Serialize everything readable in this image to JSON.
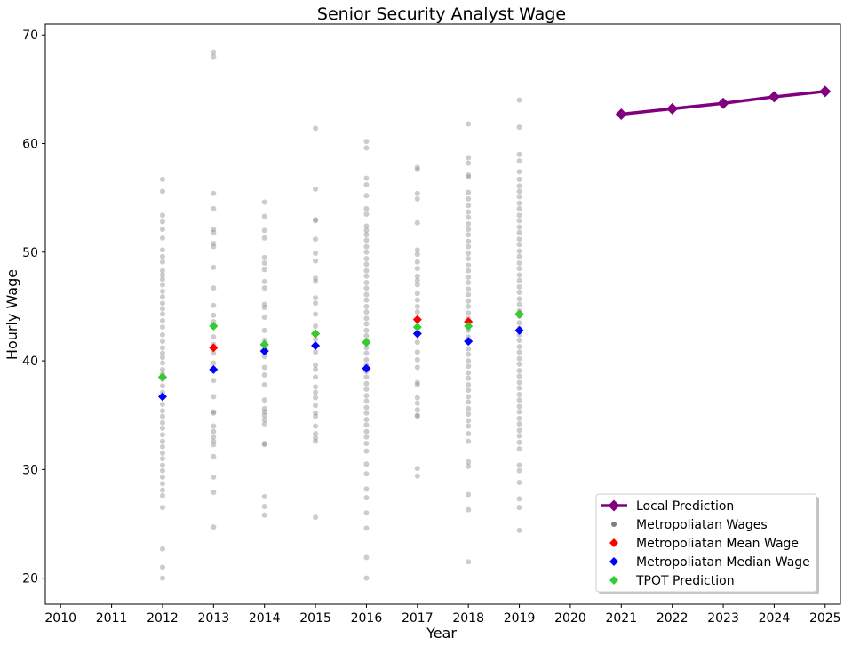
{
  "chart_data": {
    "type": "scatter",
    "title": "Senior Security Analyst Wage",
    "xlabel": "Year",
    "ylabel": "Hourly Wage",
    "xlim": [
      2009.7,
      2025.3
    ],
    "ylim": [
      17.6,
      71.0
    ],
    "x_ticks": [
      2010,
      2011,
      2012,
      2013,
      2014,
      2015,
      2016,
      2017,
      2018,
      2019,
      2020,
      2021,
      2022,
      2023,
      2024,
      2025
    ],
    "y_ticks": [
      20,
      30,
      40,
      50,
      60,
      70
    ],
    "grid": false,
    "legend_position": "lower-right",
    "colors": {
      "local_prediction": "#800080",
      "metro_wages": "#808080",
      "mean": "#ff0000",
      "median": "#0000ff",
      "tpot": "#32cd32"
    },
    "series": [
      {
        "name": "Local Prediction",
        "kind": "line-diamond",
        "x": [
          2021,
          2022,
          2023,
          2024,
          2025
        ],
        "y": [
          62.7,
          63.2,
          63.7,
          64.3,
          64.8
        ]
      },
      {
        "name": "Metropoliatan Wages",
        "kind": "dots",
        "points": [
          {
            "x": 2012,
            "y": [
              56.7,
              55.6,
              53.4,
              52.8,
              52.1,
              51.3,
              50.2,
              49.6,
              49.1,
              48.3,
              47.9,
              47.5,
              47.0,
              46.4,
              45.9,
              45.3,
              44.8,
              44.3,
              43.7,
              43.1,
              42.4,
              41.8,
              41.2,
              40.7,
              40.3,
              39.8,
              39.2,
              38.8,
              38.3,
              37.7,
              37.1,
              36.6,
              36.0,
              35.4,
              34.9,
              34.3,
              33.8,
              33.2,
              32.6,
              32.1,
              31.5,
              31.0,
              30.4,
              29.9,
              29.3,
              28.7,
              28.1,
              27.6,
              26.5,
              22.7,
              21.0,
              20.0
            ]
          },
          {
            "x": 2013,
            "y": [
              68.4,
              68.0,
              55.4,
              54.0,
              52.1,
              51.8,
              50.8,
              50.5,
              48.6,
              46.7,
              45.1,
              44.2,
              43.6,
              42.2,
              41.5,
              40.7,
              39.8,
              38.2,
              36.7,
              35.3,
              35.2,
              34.0,
              33.5,
              33.0,
              32.6,
              32.3,
              31.2,
              29.3,
              27.9,
              24.7
            ]
          },
          {
            "x": 2014,
            "y": [
              54.6,
              53.3,
              52.0,
              51.3,
              49.5,
              49.0,
              48.4,
              47.3,
              46.7,
              45.2,
              44.9,
              44.0,
              42.8,
              41.9,
              41.0,
              40.4,
              39.4,
              38.7,
              37.8,
              36.4,
              35.6,
              35.3,
              35.0,
              34.6,
              34.2,
              32.4,
              32.3,
              27.5,
              26.6,
              25.8
            ]
          },
          {
            "x": 2015,
            "y": [
              61.4,
              55.8,
              53.0,
              52.9,
              51.2,
              49.9,
              49.2,
              47.6,
              47.3,
              45.8,
              45.3,
              44.3,
              43.2,
              42.0,
              40.8,
              39.6,
              39.2,
              38.5,
              37.6,
              37.1,
              36.6,
              35.9,
              35.2,
              34.9,
              34.0,
              33.3,
              32.9,
              32.6,
              25.6
            ]
          },
          {
            "x": 2016,
            "y": [
              60.2,
              59.6,
              56.8,
              56.2,
              55.2,
              54.0,
              53.5,
              52.4,
              52.0,
              51.6,
              51.1,
              50.5,
              50.0,
              49.4,
              48.9,
              48.3,
              47.8,
              47.2,
              46.7,
              46.1,
              45.6,
              45.0,
              44.5,
              43.9,
              43.4,
              42.8,
              42.3,
              41.8,
              41.2,
              40.7,
              40.1,
              39.6,
              39.0,
              38.5,
              37.9,
              37.4,
              36.8,
              36.3,
              35.7,
              35.2,
              34.6,
              34.1,
              33.5,
              33.0,
              32.4,
              31.7,
              30.5,
              29.6,
              28.2,
              27.4,
              26.0,
              24.6,
              21.9,
              20.0
            ]
          },
          {
            "x": 2017,
            "y": [
              57.8,
              57.6,
              55.4,
              54.9,
              52.7,
              50.2,
              49.8,
              49.1,
              48.5,
              47.8,
              47.4,
              47.0,
              46.2,
              45.6,
              45.0,
              44.5,
              43.7,
              43.1,
              42.4,
              41.7,
              40.8,
              40.1,
              39.4,
              38.0,
              37.8,
              36.6,
              36.1,
              35.5,
              35.0,
              34.9,
              30.1,
              29.4
            ]
          },
          {
            "x": 2018,
            "y": [
              61.8,
              58.7,
              58.2,
              57.1,
              56.9,
              55.5,
              54.9,
              54.3,
              53.7,
              53.2,
              52.6,
              52.1,
              51.6,
              51.0,
              50.5,
              49.9,
              49.4,
              48.8,
              48.3,
              47.7,
              47.2,
              46.6,
              46.1,
              45.5,
              45.0,
              44.4,
              43.9,
              43.3,
              42.8,
              42.2,
              41.7,
              41.1,
              40.6,
              40.0,
              39.5,
              38.9,
              38.4,
              37.8,
              37.3,
              36.7,
              36.2,
              35.6,
              35.1,
              34.5,
              34.0,
              33.3,
              32.6,
              30.7,
              30.3,
              27.7,
              26.3,
              21.5
            ]
          },
          {
            "x": 2019,
            "y": [
              64.0,
              61.5,
              59.0,
              58.4,
              57.4,
              56.7,
              56.1,
              55.6,
              55.1,
              54.5,
              54.0,
              53.4,
              52.9,
              52.3,
              51.8,
              51.2,
              50.7,
              50.1,
              49.6,
              49.0,
              48.5,
              47.9,
              47.4,
              46.8,
              46.3,
              45.7,
              45.2,
              44.6,
              44.1,
              43.5,
              43.0,
              42.4,
              41.9,
              41.3,
              40.8,
              40.2,
              39.7,
              39.1,
              38.6,
              38.0,
              37.5,
              36.9,
              36.4,
              35.8,
              35.3,
              34.7,
              34.2,
              33.6,
              33.1,
              32.5,
              31.9,
              30.4,
              29.9,
              28.8,
              27.3,
              26.5,
              24.4
            ]
          }
        ]
      },
      {
        "name": "Metropoliatan Mean Wage",
        "kind": "diamond",
        "x": [
          2012,
          2013,
          2014,
          2015,
          2016,
          2017,
          2018,
          2019
        ],
        "y": [
          38.5,
          41.2,
          41.5,
          42.5,
          41.7,
          43.8,
          43.6,
          44.3
        ]
      },
      {
        "name": "Metropoliatan Median Wage",
        "kind": "diamond",
        "x": [
          2012,
          2013,
          2014,
          2015,
          2016,
          2017,
          2018,
          2019
        ],
        "y": [
          36.7,
          39.2,
          40.9,
          41.4,
          39.3,
          42.5,
          41.8,
          42.8
        ]
      },
      {
        "name": "TPOT Prediction",
        "kind": "diamond",
        "x": [
          2012,
          2013,
          2014,
          2015,
          2016,
          2017,
          2018,
          2019
        ],
        "y": [
          38.5,
          43.2,
          41.5,
          42.5,
          41.7,
          43.1,
          43.2,
          44.3
        ]
      }
    ]
  }
}
